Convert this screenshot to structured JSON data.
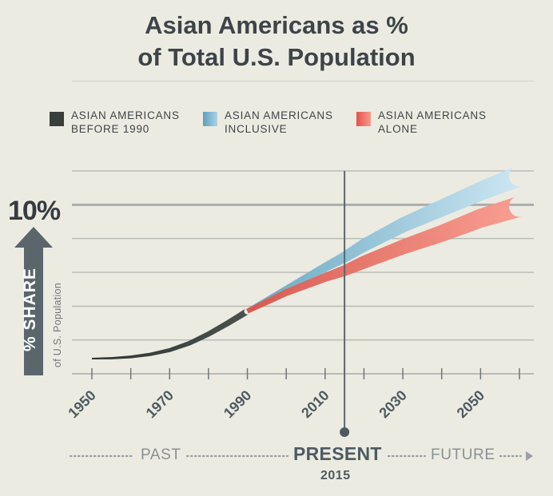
{
  "title_line1": "Asian Americans as %",
  "title_line2": "of Total U.S. Population",
  "legend": [
    {
      "label": "ASIAN AMERICANS\nBEFORE 1990",
      "color": "#383e3c"
    },
    {
      "label": "ASIAN AMERICANS\nINCLUSIVE",
      "color": "#72b1cd"
    },
    {
      "label": "ASIAN AMERICANS\nALONE",
      "color": "#ee5e50"
    }
  ],
  "y_axis": {
    "highlight_label": "10%",
    "label_main": "% SHARE",
    "label_sub": "of U.S. Population"
  },
  "timeline": {
    "past": "PAST",
    "present": "PRESENT",
    "present_year": "2015",
    "future": "FUTURE"
  },
  "chart_data": {
    "type": "line",
    "x_ticks": [
      "1950",
      "1970",
      "1990",
      "2010",
      "2030",
      "2050"
    ],
    "xlim": [
      1950,
      2060
    ],
    "ylim": [
      0,
      12
    ],
    "y_gridlines": [
      0,
      2,
      4,
      6,
      8,
      10,
      12
    ],
    "highlight_y": 10,
    "present_x": 2015,
    "series": [
      {
        "name": "ASIAN AMERICANS BEFORE 1990",
        "color": "#383e3c",
        "x": [
          1950,
          1955,
          1960,
          1965,
          1970,
          1975,
          1980,
          1985,
          1990
        ],
        "y": [
          0.9,
          0.92,
          1.0,
          1.15,
          1.4,
          1.8,
          2.35,
          3.0,
          3.7
        ]
      },
      {
        "name": "ASIAN AMERICANS INCLUSIVE",
        "color": "#72b1cd",
        "x": [
          1990,
          2000,
          2010,
          2015,
          2020,
          2030,
          2040,
          2050,
          2060
        ],
        "y": [
          3.7,
          5.0,
          6.3,
          6.9,
          7.6,
          8.8,
          9.8,
          10.8,
          11.7
        ]
      },
      {
        "name": "ASIAN AMERICANS ALONE",
        "color": "#ee5e50",
        "x": [
          1990,
          2000,
          2010,
          2015,
          2020,
          2030,
          2040,
          2050,
          2060
        ],
        "y": [
          3.7,
          4.8,
          5.7,
          6.1,
          6.6,
          7.5,
          8.3,
          9.2,
          9.9
        ]
      }
    ]
  }
}
